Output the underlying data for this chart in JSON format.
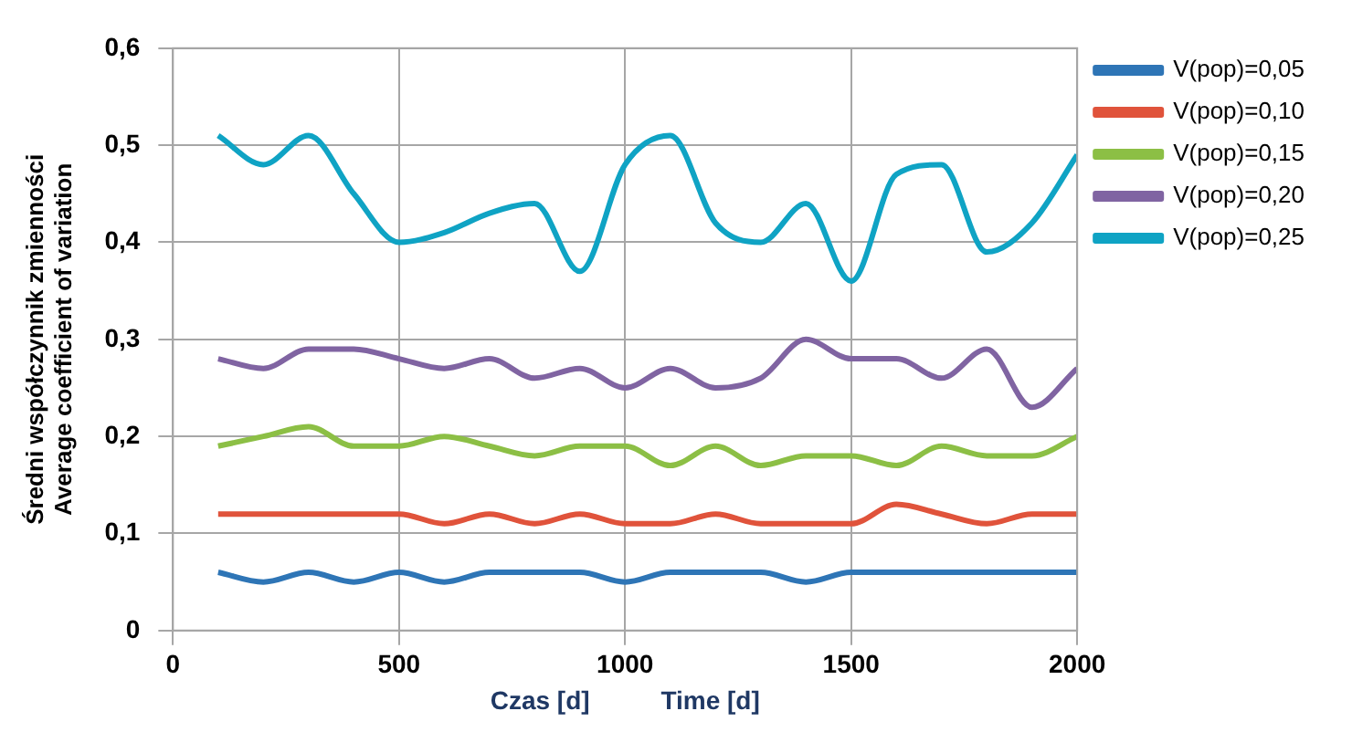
{
  "chart_data": {
    "type": "line",
    "xlabel": "Czas [d]          Time [d]",
    "ylabel": "Średni współczynnik zmienności\nAverage coefficient of variation",
    "x": [
      100,
      200,
      300,
      400,
      500,
      600,
      700,
      800,
      900,
      1000,
      1100,
      1200,
      1300,
      1400,
      1500,
      1600,
      1700,
      1800,
      1900,
      2000
    ],
    "series": [
      {
        "name": "V(pop)=0,05",
        "color": "#2e75b6",
        "values": [
          0.06,
          0.05,
          0.06,
          0.05,
          0.06,
          0.05,
          0.06,
          0.06,
          0.06,
          0.05,
          0.06,
          0.06,
          0.06,
          0.05,
          0.06,
          0.06,
          0.06,
          0.06,
          0.06,
          0.06
        ]
      },
      {
        "name": "V(pop)=0,10",
        "color": "#e0533b",
        "values": [
          0.12,
          0.12,
          0.12,
          0.12,
          0.12,
          0.11,
          0.12,
          0.11,
          0.12,
          0.11,
          0.11,
          0.12,
          0.11,
          0.11,
          0.11,
          0.13,
          0.12,
          0.11,
          0.12,
          0.12
        ]
      },
      {
        "name": "V(pop)=0,15",
        "color": "#8cbf45",
        "values": [
          0.19,
          0.2,
          0.21,
          0.19,
          0.19,
          0.2,
          0.19,
          0.18,
          0.19,
          0.19,
          0.17,
          0.19,
          0.17,
          0.18,
          0.18,
          0.17,
          0.19,
          0.18,
          0.18,
          0.2
        ]
      },
      {
        "name": "V(pop)=0,20",
        "color": "#8064a2",
        "values": [
          0.28,
          0.27,
          0.29,
          0.29,
          0.28,
          0.27,
          0.28,
          0.26,
          0.27,
          0.25,
          0.27,
          0.25,
          0.26,
          0.3,
          0.28,
          0.28,
          0.26,
          0.29,
          0.23,
          0.27
        ]
      },
      {
        "name": "V(pop)=0,25",
        "color": "#0fa3c4",
        "values": [
          0.51,
          0.48,
          0.51,
          0.45,
          0.4,
          0.41,
          0.43,
          0.44,
          0.37,
          0.48,
          0.51,
          0.42,
          0.4,
          0.44,
          0.36,
          0.47,
          0.48,
          0.39,
          0.42,
          0.49
        ]
      }
    ],
    "xlim": [
      0,
      2000
    ],
    "xticks": [
      0,
      500,
      1000,
      1500,
      2000
    ],
    "ylim": [
      0,
      0.6
    ],
    "yticks": [
      0,
      {
        "value": 0.1,
        "label": "0,1"
      },
      {
        "value": 0.2,
        "label": "0,2"
      },
      {
        "value": 0.3,
        "label": "0,3"
      },
      {
        "value": 0.4,
        "label": "0,4"
      },
      {
        "value": 0.5,
        "label": "0,5"
      },
      {
        "value": 0.6,
        "label": "0,6"
      }
    ],
    "grid": true,
    "legend": "right",
    "marker": "none",
    "line_style": "solid"
  }
}
